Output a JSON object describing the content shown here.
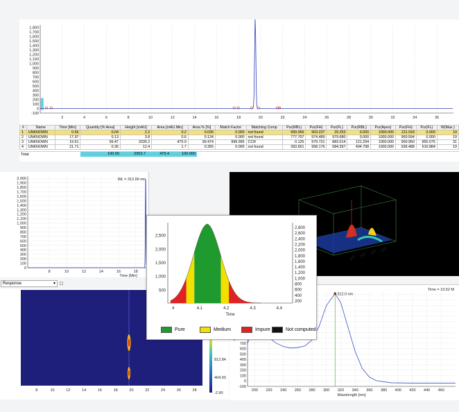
{
  "top_chromatogram": {
    "y_ticks": [
      "1,800",
      "1,700",
      "1,600",
      "1,500",
      "1,400",
      "1,300",
      "1,200",
      "1,100",
      "1,000",
      "900",
      "800",
      "700",
      "600",
      "500",
      "400",
      "300",
      "200",
      "100",
      "0",
      "-100"
    ],
    "x_ticks": [
      "2",
      "4",
      "6",
      "8",
      "10",
      "12",
      "14",
      "16",
      "18",
      "20",
      "22",
      "24",
      "26",
      "28",
      "30",
      "32",
      "34",
      "36"
    ],
    "x_tick_values": [
      2,
      4,
      6,
      8,
      10,
      12,
      14,
      16,
      18,
      20,
      22,
      24,
      26,
      28,
      30,
      32,
      34,
      36
    ],
    "x_range": [
      0,
      37.5
    ],
    "y_range": [
      -100,
      1850
    ],
    "peak_time": 19.51,
    "peak_height": 2035.2
  },
  "results_table": {
    "headers": [
      "#",
      "Name",
      "Time [Min]",
      "Quantity [% Area]",
      "Height [mAU]",
      "Area [mAU.Min]",
      "Area % [%]",
      "Match Factor",
      "Matching Comp",
      "Pur(RBL)",
      "Pur(FH)",
      "Pur(FL)",
      "Pur(RBL)",
      "Pur(Apex)",
      "Pur(FH)",
      "Pur(FL)",
      "W(Max.)"
    ],
    "rows": [
      [
        "1",
        "UNKNOWN",
        "0.56",
        "0.04",
        "2.2",
        "0.2",
        "0.036",
        "0.000",
        "not found",
        "999.056",
        "903.237",
        "29.253",
        "0.000",
        "1000.000",
        "131.918",
        "0.000",
        "19"
      ],
      [
        "2",
        "UNKNOWN",
        "17.97",
        "0.13",
        "3.8",
        "0.6",
        "0.134",
        "0.000",
        "not found",
        "777.707",
        "974.489",
        "979.680",
        "0.000",
        "1000.000",
        "969.594",
        "0.000",
        "19"
      ],
      [
        "3",
        "UNKNOWN",
        "19.51",
        "99.47",
        "2035.2",
        "475.9",
        "99.474",
        "999.995",
        "CCR",
        "0.125",
        "979.731",
        "883.014",
        "121.294",
        "1000.000",
        "950.950",
        "855.075",
        "31"
      ],
      [
        "4",
        "UNKNOWN",
        "21.71",
        "0.36",
        "12.4",
        "1.7",
        "0.355",
        "0.000",
        "not found",
        "393.651",
        "958.176",
        "684.397",
        "494.798",
        "1000.000",
        "936.488",
        "610.884",
        "19"
      ]
    ],
    "total_label": "Total",
    "totals": [
      "100.00",
      "2053.7",
      "479.4",
      "100.000"
    ]
  },
  "mid_chromatogram": {
    "y_ticks": [
      "2,000",
      "1,900",
      "1,800",
      "1,700",
      "1,600",
      "1,500",
      "1,400",
      "1,300",
      "1,200",
      "1,100",
      "1,000",
      "900",
      "800",
      "700",
      "600",
      "500",
      "400",
      "300",
      "200",
      "100",
      "0"
    ],
    "x_ticks": [
      "8",
      "10",
      "12",
      "14",
      "16",
      "18"
    ],
    "x_label": "Time [Min]",
    "wl_label": "WL = 312.00 nm"
  },
  "response_dropdown": {
    "value": "Response"
  },
  "contour": {
    "x_ticks": [
      "8",
      "10",
      "12",
      "14",
      "16",
      "18",
      "20",
      "22",
      "24",
      "26",
      "28"
    ],
    "colorbar_ticks": [
      "812.84",
      "404.93",
      "-2.90"
    ]
  },
  "spectrum": {
    "time_label": "Time = 19.52 M",
    "peak_label": "312.0 nm",
    "y_ticks": [
      "1,600",
      "1,500",
      "1,400",
      "1,300",
      "1,200",
      "1,100",
      "1,000",
      "900",
      "800",
      "700",
      "600",
      "500",
      "400",
      "300",
      "200",
      "100",
      "0",
      "-100"
    ],
    "x_ticks": [
      "200",
      "220",
      "240",
      "260",
      "280",
      "300",
      "320",
      "340",
      "360",
      "380",
      "400",
      "420",
      "440",
      "460"
    ],
    "x_label": "Wavelength [nm]",
    "y_label": "Abs"
  },
  "purity_popup": {
    "y_left_ticks": [
      "2,500",
      "2,000",
      "1,500",
      "1,000",
      "500"
    ],
    "y_right_ticks": [
      "2,800",
      "2,600",
      "2,400",
      "2,200",
      "2,000",
      "1,800",
      "1,600",
      "1,400",
      "1,200",
      "1,000",
      "800",
      "600",
      "400",
      "200"
    ],
    "x_ticks": [
      "4",
      "4.1",
      "4.2",
      "4.3",
      "4.4"
    ],
    "x_label": "Time",
    "legend": [
      {
        "label": "Pure",
        "color": "#1f9a2e"
      },
      {
        "label": "Medium",
        "color": "#f2e100"
      },
      {
        "label": "Impure",
        "color": "#e02222"
      },
      {
        "label": "Not computed",
        "color": "#111111"
      }
    ]
  },
  "view3d": {
    "axis_ticks": [
      "200",
      "250",
      "300",
      "350"
    ]
  }
}
